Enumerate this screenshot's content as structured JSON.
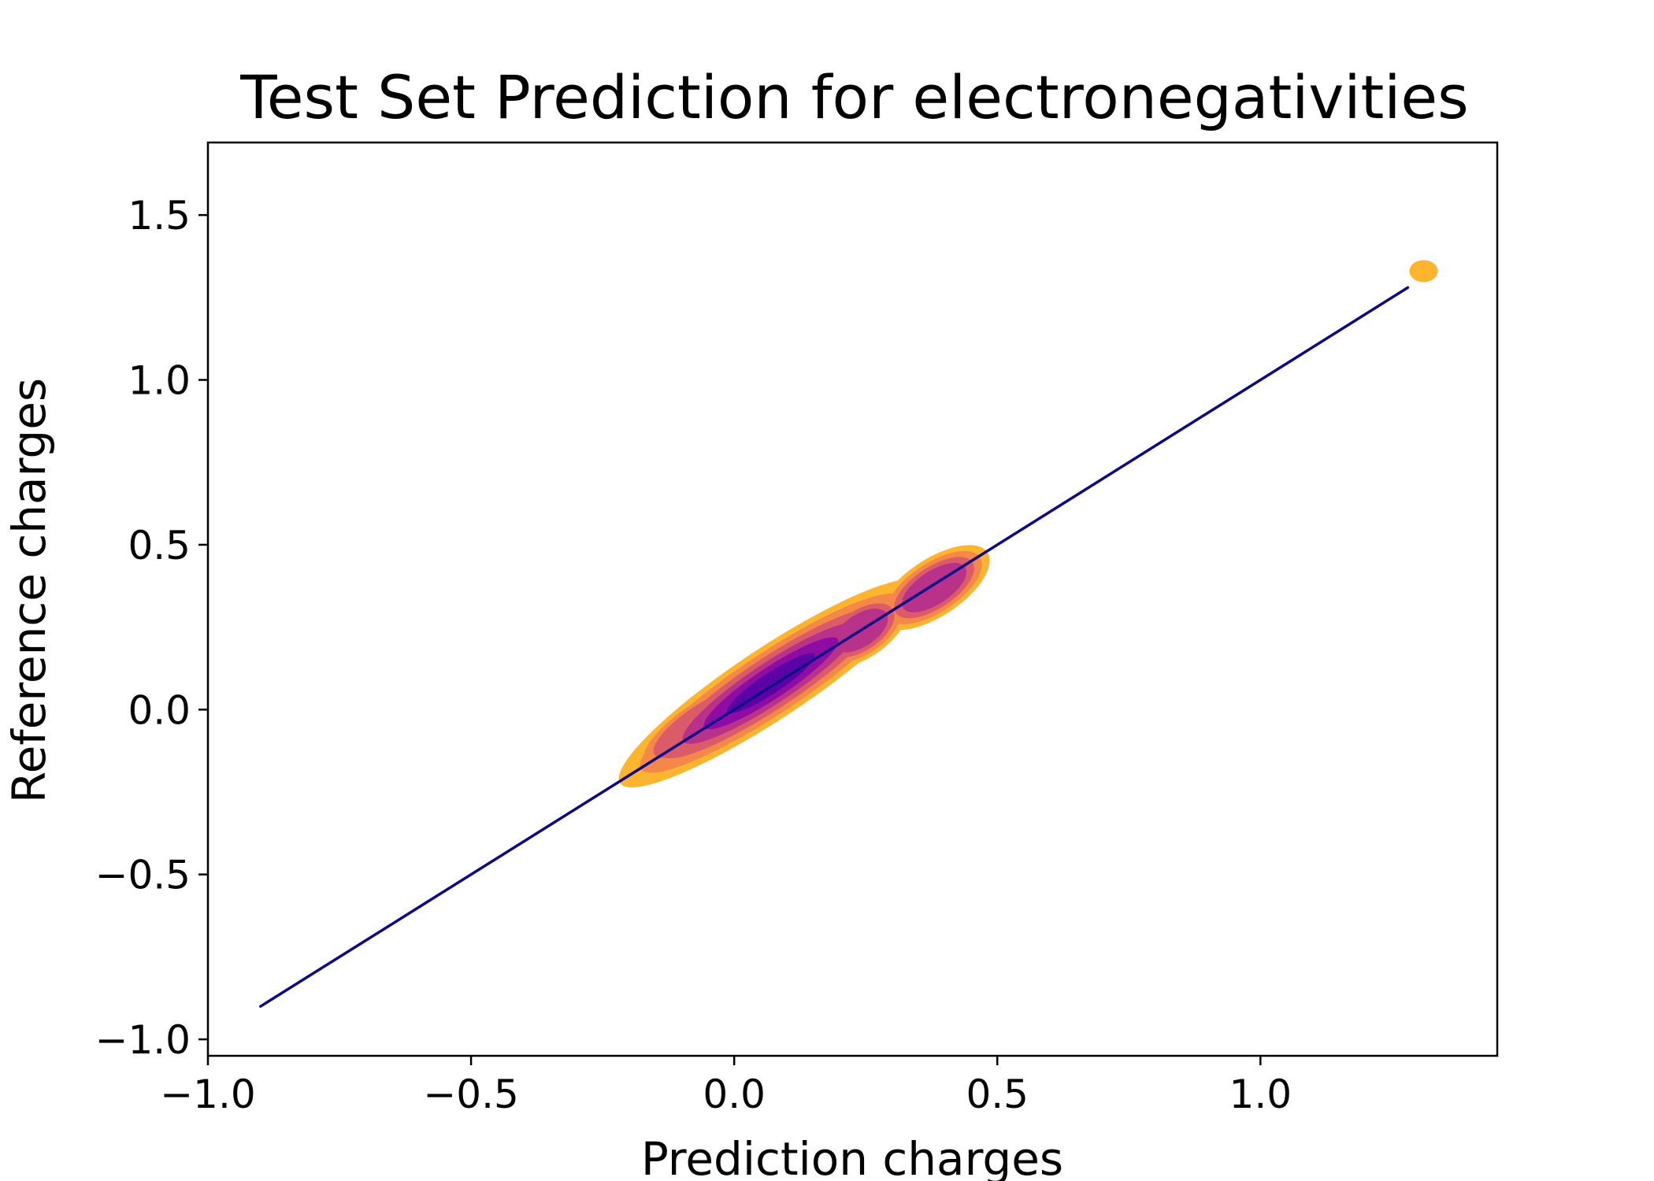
{
  "chart_data": {
    "type": "scatter",
    "title": "Test Set Prediction for electronegativities",
    "xlabel": "Prediction charges",
    "ylabel": "Reference charges",
    "xlim": [
      -1.0,
      1.45
    ],
    "ylim": [
      -1.05,
      1.72
    ],
    "xticks": [
      -1.0,
      -0.5,
      0.0,
      0.5,
      1.0
    ],
    "yticks": [
      -1.0,
      -0.5,
      0.0,
      0.5,
      1.0,
      1.5
    ],
    "xtick_labels": [
      "−1.0",
      "−0.5",
      "0.0",
      "0.5",
      "1.0"
    ],
    "ytick_labels": [
      "−1.0",
      "−0.5",
      "0.0",
      "0.5",
      "1.0",
      "1.5"
    ],
    "grid": false,
    "series": [
      {
        "kind": "reference-line",
        "color": "#0d0887",
        "x": [
          -0.9,
          1.28
        ],
        "y": [
          -0.9,
          1.28
        ]
      },
      {
        "kind": "density",
        "colormap": [
          "#fdb42f",
          "#f48849",
          "#db5c68",
          "#b93289",
          "#8e0ca4",
          "#5c01a6"
        ],
        "clusters": [
          {
            "x": 0.07,
            "y": 0.08,
            "sx": 0.16,
            "sy": 0.05,
            "weight": 1.0
          },
          {
            "x": -0.06,
            "y": -0.04,
            "sx": 0.1,
            "sy": 0.05,
            "weight": 0.5
          },
          {
            "x": 0.24,
            "y": 0.24,
            "sx": 0.06,
            "sy": 0.05,
            "weight": 0.62
          },
          {
            "x": 0.38,
            "y": 0.37,
            "sx": 0.07,
            "sy": 0.05,
            "weight": 0.65
          }
        ],
        "outliers": [
          {
            "x": 1.31,
            "y": 1.33
          }
        ]
      }
    ]
  }
}
